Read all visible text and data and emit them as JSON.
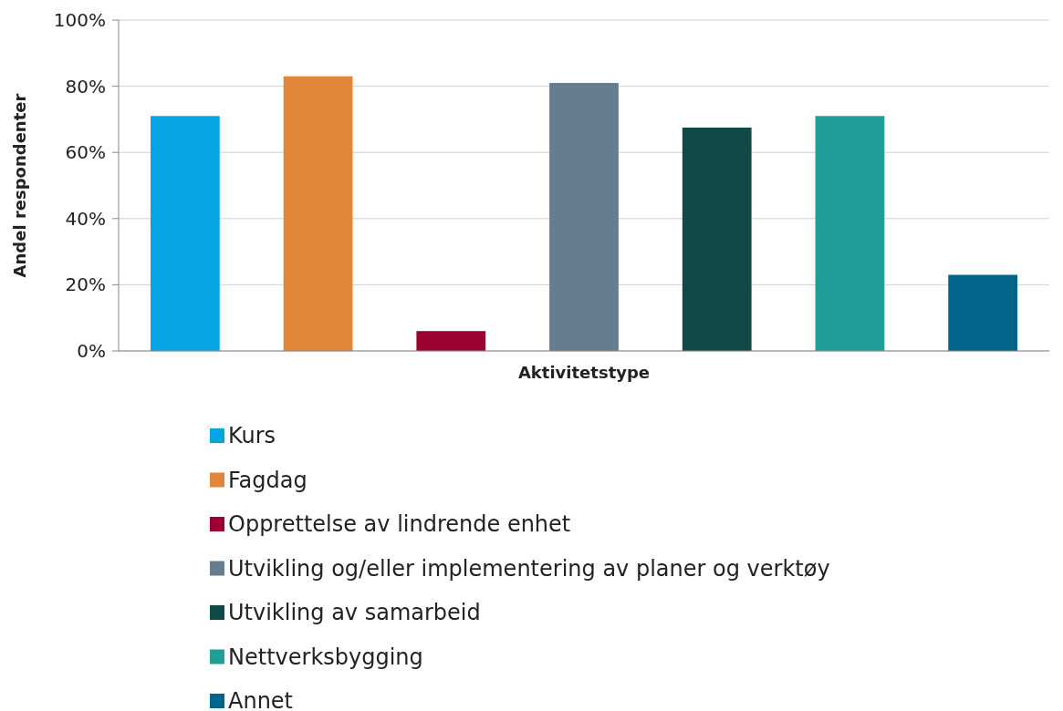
{
  "chart_data": {
    "type": "bar",
    "xlabel": "Aktivitetstype",
    "ylabel": "Andel respondenter",
    "categories": [
      null
    ],
    "series": [
      {
        "name": "Kurs",
        "color": "#05a5e3",
        "values": [
          71
        ]
      },
      {
        "name": "Fagdag",
        "color": "#e08638",
        "values": [
          83
        ]
      },
      {
        "name": "Opprettelse av lindrende enhet",
        "color": "#9b0030",
        "values": [
          6
        ]
      },
      {
        "name": "Utvikling og/eller implementering av planer og verktøy",
        "color": "#667d90",
        "values": [
          81
        ]
      },
      {
        "name": "Utvikling av samarbeid",
        "color": "#114848",
        "values": [
          67.5
        ]
      },
      {
        "name": "Nettverksbygging",
        "color": "#229e99",
        "values": [
          71
        ]
      },
      {
        "name": "Annet",
        "color": "#016589",
        "values": [
          23
        ]
      }
    ],
    "ylim": [
      0,
      100
    ],
    "yticks": [
      {
        "value": 0,
        "label": "0%"
      },
      {
        "value": 20,
        "label": "20%"
      },
      {
        "value": 40,
        "label": "40%"
      },
      {
        "value": 60,
        "label": "60%"
      },
      {
        "value": 80,
        "label": "80%"
      },
      {
        "value": 100,
        "label": "100%"
      }
    ],
    "grid": "y",
    "legend": "bottom"
  }
}
